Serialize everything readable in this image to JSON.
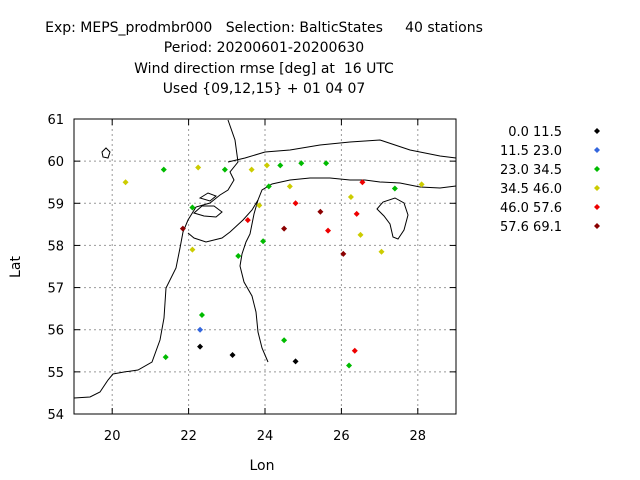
{
  "title_lines": [
    "Exp: MEPS_prodmbr000   Selection: BalticStates     40 stations",
    "Period: 20200601-20200630",
    "Wind direction rmse [deg] at  16 UTC",
    "Used {09,12,15} + 01 04 07"
  ],
  "chart_data": {
    "type": "scatter",
    "xlabel": "Lon",
    "ylabel": "Lat",
    "xlim": [
      19,
      29
    ],
    "ylim": [
      54,
      61
    ],
    "xticks": [
      20,
      22,
      24,
      26,
      28
    ],
    "yticks": [
      54,
      55,
      56,
      57,
      58,
      59,
      60,
      61
    ],
    "grid": true,
    "legend_position": "right",
    "series": [
      {
        "name": "0.0 11.5",
        "color": "#000000",
        "points": [
          [
            22.3,
            55.6
          ],
          [
            23.15,
            55.4
          ],
          [
            24.8,
            55.25
          ]
        ]
      },
      {
        "name": "11.5 23.0",
        "color": "#3366dd",
        "points": [
          [
            22.3,
            56.0
          ]
        ]
      },
      {
        "name": "23.0 34.5",
        "color": "#00bb00",
        "points": [
          [
            21.35,
            59.8
          ],
          [
            22.95,
            59.8
          ],
          [
            24.4,
            59.9
          ],
          [
            24.95,
            59.95
          ],
          [
            25.6,
            59.95
          ],
          [
            27.4,
            59.35
          ],
          [
            24.1,
            59.4
          ],
          [
            22.1,
            58.9
          ],
          [
            23.95,
            58.1
          ],
          [
            23.3,
            57.75
          ],
          [
            22.35,
            56.35
          ],
          [
            21.4,
            55.35
          ],
          [
            24.5,
            55.75
          ],
          [
            26.2,
            55.15
          ]
        ]
      },
      {
        "name": "34.5 46.0",
        "color": "#cccc00",
        "points": [
          [
            20.35,
            59.5
          ],
          [
            22.25,
            59.85
          ],
          [
            23.65,
            59.8
          ],
          [
            24.05,
            59.9
          ],
          [
            24.65,
            59.4
          ],
          [
            26.25,
            59.15
          ],
          [
            28.1,
            59.45
          ],
          [
            23.85,
            58.95
          ],
          [
            26.5,
            58.25
          ],
          [
            27.05,
            57.85
          ],
          [
            22.1,
            57.9
          ]
        ]
      },
      {
        "name": "46.0 57.6",
        "color": "#ee0000",
        "points": [
          [
            26.55,
            59.5
          ],
          [
            24.8,
            59.0
          ],
          [
            26.4,
            58.75
          ],
          [
            23.55,
            58.6
          ],
          [
            25.65,
            58.35
          ],
          [
            26.35,
            55.5
          ]
        ]
      },
      {
        "name": "57.6 69.1",
        "color": "#8b0000",
        "points": [
          [
            25.45,
            58.8
          ],
          [
            24.5,
            58.4
          ],
          [
            21.85,
            58.4
          ],
          [
            26.05,
            57.8
          ]
        ]
      }
    ]
  }
}
